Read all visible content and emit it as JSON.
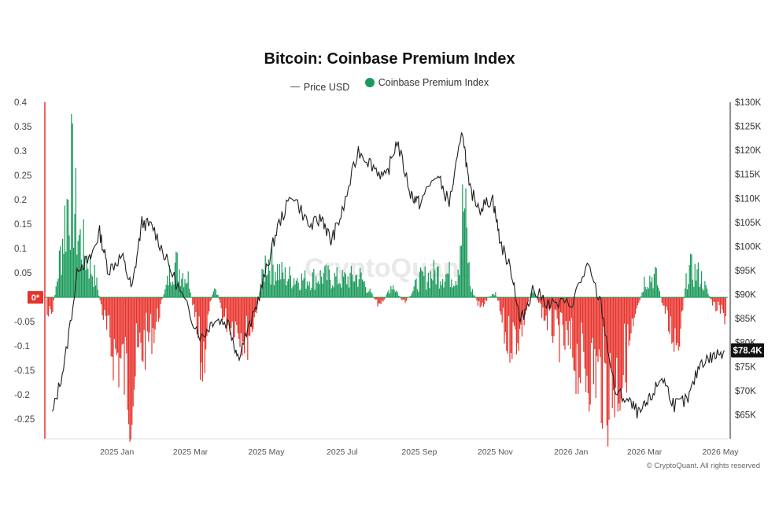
{
  "chart_data": {
    "type": "bar+line",
    "title": "Bitcoin: Coinbase Premium Index",
    "legend": [
      {
        "name": "Price USD",
        "shape": "line",
        "color": "#333333"
      },
      {
        "name": "Coinbase Premium Index",
        "shape": "dot",
        "color": "#1a9a5a"
      }
    ],
    "legend_position": "top-center",
    "x_ticks": [
      "2025 Jan",
      "2025 Mar",
      "2025 May",
      "2025 Jul",
      "2025 Sep",
      "2025 Nov",
      "2026 Jan",
      "2026 Mar",
      "2026 May"
    ],
    "left_axis": {
      "ticks": [
        "0.4",
        "0.35",
        "0.3",
        "0.25",
        "0.2",
        "0.15",
        "0.1",
        "0.05",
        "-0.05",
        "-0.1",
        "-0.15",
        "-0.2",
        "-0.25"
      ],
      "zero_label": "0*",
      "range": [
        -0.29,
        0.4
      ]
    },
    "right_axis": {
      "ticks": [
        "$130K",
        "$125K",
        "$120K",
        "$115K",
        "$110K",
        "$105K",
        "$100K",
        "$95K",
        "$90K",
        "$85K",
        "$80K",
        "$75K",
        "$70K",
        "$65K"
      ],
      "range": [
        60000,
        130000
      ]
    },
    "current_price_label": "$78.4K",
    "positive_color": "#1a9a5a",
    "negative_color": "#e8322b",
    "price_series": {
      "name": "Price USD",
      "x": [
        "2024-11-10",
        "2024-11-20",
        "2024-12-01",
        "2024-12-10",
        "2024-12-18",
        "2024-12-25",
        "2025-01-05",
        "2025-01-13",
        "2025-01-21",
        "2025-01-30",
        "2025-02-10",
        "2025-02-25",
        "2025-03-10",
        "2025-03-20",
        "2025-04-01",
        "2025-04-08",
        "2025-04-20",
        "2025-05-01",
        "2025-05-10",
        "2025-05-22",
        "2025-06-05",
        "2025-06-15",
        "2025-06-22",
        "2025-07-01",
        "2025-07-14",
        "2025-07-25",
        "2025-08-05",
        "2025-08-14",
        "2025-08-25",
        "2025-09-01",
        "2025-09-15",
        "2025-09-25",
        "2025-10-06",
        "2025-10-11",
        "2025-10-20",
        "2025-10-30",
        "2025-11-05",
        "2025-11-15",
        "2025-11-21",
        "2025-12-01",
        "2025-12-15",
        "2026-01-01",
        "2026-01-14",
        "2026-01-25",
        "2026-02-05",
        "2026-02-15",
        "2026-02-25",
        "2026-03-05",
        "2026-03-15",
        "2026-03-25",
        "2026-04-05",
        "2026-04-15",
        "2026-04-25",
        "2026-05-04"
      ],
      "y": [
        65000,
        76000,
        96000,
        97000,
        103000,
        95000,
        98000,
        91000,
        105000,
        104000,
        97000,
        88000,
        81000,
        85000,
        84000,
        77000,
        85000,
        95000,
        104000,
        111000,
        104000,
        106000,
        101000,
        107000,
        120000,
        117000,
        114000,
        122000,
        111000,
        109000,
        115000,
        109000,
        124000,
        112000,
        108000,
        110000,
        101000,
        94000,
        84000,
        91000,
        88000,
        88000,
        96000,
        88000,
        70000,
        68000,
        65000,
        68000,
        73000,
        67000,
        68000,
        76000,
        77000,
        78400
      ]
    },
    "premium_series": {
      "name": "Coinbase Premium Index",
      "x": [
        "2024-11-10",
        "2024-11-20",
        "2024-11-25",
        "2024-12-01",
        "2024-12-15",
        "2024-12-25",
        "2025-01-06",
        "2025-01-12",
        "2025-01-20",
        "2025-02-01",
        "2025-02-15",
        "2025-02-28",
        "2025-03-10",
        "2025-03-20",
        "2025-03-28",
        "2025-04-08",
        "2025-04-15",
        "2025-04-22",
        "2025-05-01",
        "2025-05-15",
        "2025-06-01",
        "2025-06-15",
        "2025-07-01",
        "2025-07-15",
        "2025-08-01",
        "2025-08-10",
        "2025-08-20",
        "2025-09-01",
        "2025-09-15",
        "2025-10-01",
        "2025-10-07",
        "2025-10-12",
        "2025-10-20",
        "2025-11-01",
        "2025-11-10",
        "2025-11-21",
        "2025-12-01",
        "2025-12-10",
        "2025-12-20",
        "2026-01-01",
        "2026-01-10",
        "2026-01-20",
        "2026-01-31",
        "2026-02-10",
        "2026-02-20",
        "2026-03-01",
        "2026-03-10",
        "2026-03-20",
        "2026-03-28",
        "2026-04-05",
        "2026-04-15",
        "2026-04-25",
        "2026-05-04"
      ],
      "y": [
        -0.05,
        0.21,
        0.34,
        0.17,
        0.05,
        -0.12,
        -0.2,
        -0.26,
        -0.15,
        -0.08,
        0.1,
        0.05,
        -0.2,
        0.05,
        -0.06,
        -0.08,
        -0.12,
        -0.05,
        0.11,
        0.06,
        0.05,
        0.06,
        0.05,
        0.06,
        -0.03,
        0.04,
        -0.02,
        0.05,
        0.07,
        0.06,
        0.27,
        0.03,
        -0.03,
        0.02,
        -0.12,
        -0.1,
        0.03,
        -0.05,
        -0.1,
        -0.15,
        -0.2,
        -0.2,
        -0.26,
        -0.22,
        -0.1,
        0.05,
        0.06,
        -0.08,
        -0.12,
        0.08,
        0.06,
        -0.02,
        -0.05
      ]
    }
  },
  "watermark": "CryptoQuant",
  "copyright": "© CryptoQuant. All rights reserved"
}
